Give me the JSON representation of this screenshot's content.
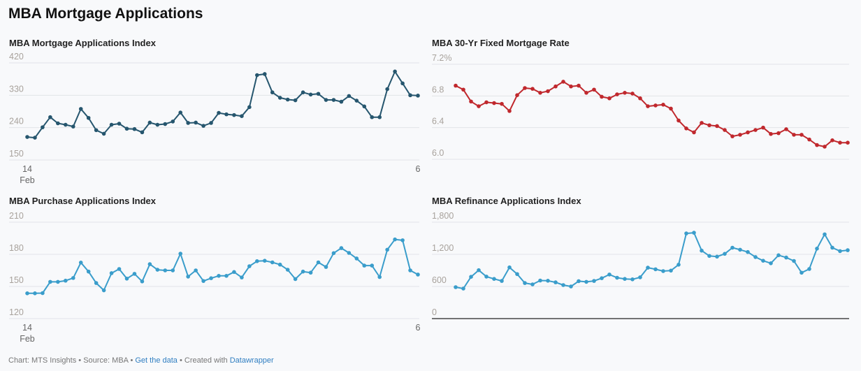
{
  "page_title": "MBA Mortgage Applications",
  "footer": {
    "chart_by": "Chart: MTS Insights",
    "source": "Source: MBA",
    "get_data": "Get the data",
    "created_with": "Created with",
    "datawrapper": "Datawrapper",
    "sep": "•"
  },
  "chart_data": [
    {
      "type": "line",
      "title": "MBA Mortgage Applications Index",
      "color": "#26566e",
      "ylim": [
        150,
        420
      ],
      "yticks": [
        "420",
        "330",
        "240",
        "150"
      ],
      "ytick_values": [
        420,
        330,
        240,
        150
      ],
      "xtick_labels": [
        {
          "label": "14",
          "sub": "Feb"
        },
        {
          "label": "6",
          "sub": ""
        }
      ],
      "grid": true,
      "values": [
        214,
        212,
        241,
        269,
        252,
        248,
        243,
        292,
        267,
        233,
        223,
        248,
        251,
        237,
        236,
        227,
        254,
        248,
        250,
        257,
        282,
        253,
        254,
        245,
        253,
        281,
        277,
        275,
        272,
        297,
        386,
        389,
        338,
        323,
        318,
        316,
        338,
        332,
        334,
        317,
        317,
        312,
        328,
        315,
        299,
        269,
        269,
        347,
        396,
        363,
        330,
        329
      ]
    },
    {
      "type": "line",
      "title": "MBA 30-Yr Fixed Mortgage Rate",
      "color": "#c0282d",
      "ylim": [
        6.0,
        7.2
      ],
      "yticks": [
        "7.2%",
        "6.8",
        "6.4",
        "6.0"
      ],
      "ytick_values": [
        7.2,
        6.8,
        6.4,
        6.0
      ],
      "xtick_labels": [],
      "grid": true,
      "values": [
        6.93,
        6.88,
        6.73,
        6.67,
        6.72,
        6.71,
        6.7,
        6.61,
        6.81,
        6.9,
        6.89,
        6.84,
        6.86,
        6.92,
        6.98,
        6.92,
        6.93,
        6.84,
        6.88,
        6.79,
        6.77,
        6.82,
        6.84,
        6.83,
        6.77,
        6.67,
        6.68,
        6.69,
        6.64,
        6.49,
        6.39,
        6.34,
        6.46,
        6.43,
        6.42,
        6.37,
        6.29,
        6.31,
        6.34,
        6.37,
        6.4,
        6.32,
        6.33,
        6.38,
        6.31,
        6.31,
        6.25,
        6.18,
        6.16,
        6.24,
        6.21,
        6.21
      ]
    },
    {
      "type": "line",
      "title": "MBA Purchase Applications Index",
      "color": "#3a9dcb",
      "ylim": [
        120,
        210
      ],
      "yticks": [
        "210",
        "180",
        "150",
        "120"
      ],
      "ytick_values": [
        210,
        180,
        150,
        120
      ],
      "xtick_labels": [
        {
          "label": "14",
          "sub": "Feb"
        },
        {
          "label": "6",
          "sub": ""
        }
      ],
      "grid": true,
      "values": [
        143.6,
        143.6,
        143.8,
        154.3,
        154.3,
        155.4,
        157.9,
        172.3,
        163.9,
        153.2,
        146.4,
        162.4,
        166.3,
        157.3,
        161.8,
        154.7,
        170.8,
        165.6,
        165.0,
        165.0,
        180.6,
        159.2,
        165.0,
        155.1,
        157.7,
        159.9,
        159.9,
        163.5,
        158.4,
        168.9,
        173.6,
        174.0,
        172.5,
        170.4,
        165.6,
        156.9,
        163.9,
        162.9,
        172.5,
        168.2,
        181.1,
        185.8,
        181.3,
        176.1,
        169.5,
        169.5,
        158.8,
        184.3,
        193.9,
        193.1,
        165.0,
        161.1
      ]
    },
    {
      "type": "line",
      "title": "MBA Refinance Applications Index",
      "color": "#3a9dcb",
      "ylim": [
        0,
        1800
      ],
      "yticks": [
        "1,800",
        "1,200",
        "600",
        "0"
      ],
      "ytick_values": [
        1800,
        1200,
        600,
        0
      ],
      "xtick_labels": [],
      "grid": true,
      "values": [
        587,
        561,
        780,
        904,
        784,
        741,
        703,
        956,
        831,
        664,
        639,
        711,
        707,
        677,
        626,
        600,
        699,
        686,
        703,
        754,
        823,
        763,
        741,
        733,
        771,
        951,
        921,
        887,
        896,
        1007,
        1590,
        1603,
        1269,
        1170,
        1157,
        1209,
        1324,
        1286,
        1243,
        1149,
        1080,
        1033,
        1183,
        1140,
        1076,
        857,
        926,
        1307,
        1573,
        1324,
        1260,
        1277
      ]
    }
  ]
}
